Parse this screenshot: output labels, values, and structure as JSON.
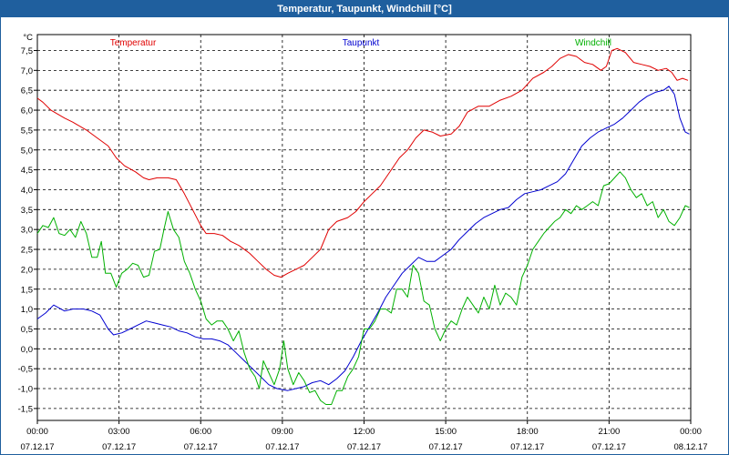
{
  "window": {
    "title": "Temperatur, Taupunkt, Windchill [°C]"
  },
  "chart_data": {
    "type": "line",
    "title": "Temperatur, Taupunkt, Windchill [°C]",
    "ylabel": "°C",
    "xlabel": "",
    "ylim": [
      -1.8,
      7.9
    ],
    "xlim": [
      0,
      24
    ],
    "grid": true,
    "legend_position": "top",
    "y_ticks": [
      -1.5,
      -1.0,
      -0.5,
      0.0,
      0.5,
      1.0,
      1.5,
      2.0,
      2.5,
      3.0,
      3.5,
      4.0,
      4.5,
      5.0,
      5.5,
      6.0,
      6.5,
      7.0,
      7.5
    ],
    "y_tick_labels": [
      "-1,5",
      "-1,0",
      "-0,5",
      "0,0",
      "0,5",
      "1,0",
      "1,5",
      "2,0",
      "2,5",
      "3,0",
      "3,5",
      "4,0",
      "4,5",
      "5,0",
      "5,5",
      "6,0",
      "6,5",
      "7,0",
      "7,5"
    ],
    "x_ticks": [
      {
        "x": 0,
        "time": "00:00",
        "date": "07.12.17"
      },
      {
        "x": 3,
        "time": "03:00",
        "date": "07.12.17"
      },
      {
        "x": 6,
        "time": "06:00",
        "date": "07.12.17"
      },
      {
        "x": 9,
        "time": "09:00",
        "date": "07.12.17"
      },
      {
        "x": 12,
        "time": "12:00",
        "date": "07.12.17"
      },
      {
        "x": 15,
        "time": "15:00",
        "date": "07.12.17"
      },
      {
        "x": 18,
        "time": "18:00",
        "date": "07.12.17"
      },
      {
        "x": 21,
        "time": "21:00",
        "date": "07.12.17"
      },
      {
        "x": 24,
        "time": "00:00",
        "date": "08.12.17"
      }
    ],
    "series": [
      {
        "name": "Temperatur",
        "color": "#e00000",
        "points": [
          [
            0,
            6.3
          ],
          [
            0.2,
            6.2
          ],
          [
            0.5,
            6.0
          ],
          [
            1.0,
            5.8
          ],
          [
            1.3,
            5.7
          ],
          [
            1.8,
            5.5
          ],
          [
            2.2,
            5.3
          ],
          [
            2.6,
            5.1
          ],
          [
            2.9,
            4.8
          ],
          [
            3.2,
            4.6
          ],
          [
            3.6,
            4.45
          ],
          [
            3.9,
            4.3
          ],
          [
            4.1,
            4.25
          ],
          [
            4.4,
            4.3
          ],
          [
            4.8,
            4.3
          ],
          [
            5.1,
            4.25
          ],
          [
            5.4,
            3.9
          ],
          [
            5.7,
            3.5
          ],
          [
            6.0,
            3.1
          ],
          [
            6.2,
            2.9
          ],
          [
            6.5,
            2.9
          ],
          [
            6.8,
            2.85
          ],
          [
            7.1,
            2.7
          ],
          [
            7.4,
            2.6
          ],
          [
            7.8,
            2.4
          ],
          [
            8.1,
            2.2
          ],
          [
            8.4,
            2.0
          ],
          [
            8.7,
            1.85
          ],
          [
            8.95,
            1.8
          ],
          [
            9.2,
            1.9
          ],
          [
            9.5,
            2.0
          ],
          [
            9.8,
            2.1
          ],
          [
            10.1,
            2.3
          ],
          [
            10.4,
            2.5
          ],
          [
            10.7,
            3.0
          ],
          [
            11.0,
            3.2
          ],
          [
            11.4,
            3.3
          ],
          [
            11.7,
            3.45
          ],
          [
            12.0,
            3.7
          ],
          [
            12.3,
            3.9
          ],
          [
            12.6,
            4.1
          ],
          [
            12.9,
            4.4
          ],
          [
            13.3,
            4.8
          ],
          [
            13.6,
            5.0
          ],
          [
            13.9,
            5.3
          ],
          [
            14.2,
            5.5
          ],
          [
            14.5,
            5.45
          ],
          [
            14.8,
            5.35
          ],
          [
            15.2,
            5.4
          ],
          [
            15.5,
            5.6
          ],
          [
            15.8,
            5.95
          ],
          [
            16.2,
            6.1
          ],
          [
            16.6,
            6.1
          ],
          [
            17.0,
            6.25
          ],
          [
            17.4,
            6.35
          ],
          [
            17.8,
            6.5
          ],
          [
            18.2,
            6.8
          ],
          [
            18.6,
            6.95
          ],
          [
            18.9,
            7.1
          ],
          [
            19.2,
            7.3
          ],
          [
            19.5,
            7.4
          ],
          [
            19.8,
            7.35
          ],
          [
            20.1,
            7.2
          ],
          [
            20.4,
            7.15
          ],
          [
            20.7,
            7.0
          ],
          [
            20.9,
            7.1
          ],
          [
            21.1,
            7.5
          ],
          [
            21.3,
            7.55
          ],
          [
            21.6,
            7.45
          ],
          [
            21.9,
            7.2
          ],
          [
            22.2,
            7.15
          ],
          [
            22.5,
            7.1
          ],
          [
            22.8,
            7.0
          ],
          [
            23.1,
            7.05
          ],
          [
            23.3,
            6.95
          ],
          [
            23.5,
            6.75
          ],
          [
            23.7,
            6.8
          ],
          [
            23.9,
            6.75
          ]
        ]
      },
      {
        "name": "Taupunkt",
        "color": "#0000d0",
        "points": [
          [
            0,
            0.75
          ],
          [
            0.3,
            0.9
          ],
          [
            0.6,
            1.1
          ],
          [
            1.0,
            0.95
          ],
          [
            1.3,
            1.0
          ],
          [
            1.7,
            1.0
          ],
          [
            2.0,
            0.95
          ],
          [
            2.3,
            0.85
          ],
          [
            2.6,
            0.5
          ],
          [
            2.8,
            0.35
          ],
          [
            3.1,
            0.4
          ],
          [
            3.4,
            0.5
          ],
          [
            3.7,
            0.6
          ],
          [
            4.0,
            0.7
          ],
          [
            4.3,
            0.65
          ],
          [
            4.6,
            0.6
          ],
          [
            4.9,
            0.55
          ],
          [
            5.2,
            0.45
          ],
          [
            5.5,
            0.4
          ],
          [
            5.8,
            0.3
          ],
          [
            6.1,
            0.25
          ],
          [
            6.4,
            0.25
          ],
          [
            6.7,
            0.2
          ],
          [
            7.0,
            0.1
          ],
          [
            7.3,
            -0.1
          ],
          [
            7.6,
            -0.3
          ],
          [
            7.9,
            -0.5
          ],
          [
            8.2,
            -0.7
          ],
          [
            8.5,
            -0.9
          ],
          [
            8.8,
            -1.0
          ],
          [
            9.2,
            -1.05
          ],
          [
            9.5,
            -1.0
          ],
          [
            9.8,
            -0.95
          ],
          [
            10.1,
            -0.85
          ],
          [
            10.4,
            -0.8
          ],
          [
            10.7,
            -0.9
          ],
          [
            11.0,
            -0.75
          ],
          [
            11.3,
            -0.55
          ],
          [
            11.6,
            -0.2
          ],
          [
            11.9,
            0.2
          ],
          [
            12.2,
            0.55
          ],
          [
            12.5,
            0.9
          ],
          [
            12.8,
            1.3
          ],
          [
            13.1,
            1.6
          ],
          [
            13.4,
            1.9
          ],
          [
            13.7,
            2.1
          ],
          [
            14.0,
            2.3
          ],
          [
            14.3,
            2.2
          ],
          [
            14.6,
            2.2
          ],
          [
            14.9,
            2.35
          ],
          [
            15.2,
            2.5
          ],
          [
            15.5,
            2.75
          ],
          [
            15.8,
            2.95
          ],
          [
            16.1,
            3.15
          ],
          [
            16.4,
            3.3
          ],
          [
            16.7,
            3.4
          ],
          [
            17.0,
            3.5
          ],
          [
            17.3,
            3.55
          ],
          [
            17.6,
            3.75
          ],
          [
            17.9,
            3.9
          ],
          [
            18.2,
            3.95
          ],
          [
            18.5,
            4.0
          ],
          [
            18.8,
            4.1
          ],
          [
            19.1,
            4.2
          ],
          [
            19.4,
            4.4
          ],
          [
            19.7,
            4.75
          ],
          [
            20.0,
            5.1
          ],
          [
            20.3,
            5.3
          ],
          [
            20.6,
            5.45
          ],
          [
            20.9,
            5.55
          ],
          [
            21.2,
            5.65
          ],
          [
            21.5,
            5.8
          ],
          [
            21.8,
            6.0
          ],
          [
            22.1,
            6.2
          ],
          [
            22.4,
            6.35
          ],
          [
            22.7,
            6.45
          ],
          [
            23.0,
            6.5
          ],
          [
            23.2,
            6.6
          ],
          [
            23.4,
            6.4
          ],
          [
            23.6,
            5.8
          ],
          [
            23.8,
            5.45
          ],
          [
            23.95,
            5.4
          ]
        ]
      },
      {
        "name": "Windchill",
        "color": "#00b000",
        "points": [
          [
            0,
            2.9
          ],
          [
            0.2,
            3.1
          ],
          [
            0.4,
            3.05
          ],
          [
            0.6,
            3.3
          ],
          [
            0.8,
            2.9
          ],
          [
            1.0,
            2.85
          ],
          [
            1.2,
            3.0
          ],
          [
            1.4,
            2.8
          ],
          [
            1.6,
            3.2
          ],
          [
            1.8,
            2.9
          ],
          [
            2.0,
            2.3
          ],
          [
            2.2,
            2.3
          ],
          [
            2.35,
            2.7
          ],
          [
            2.5,
            1.9
          ],
          [
            2.7,
            1.9
          ],
          [
            2.9,
            1.55
          ],
          [
            3.1,
            1.9
          ],
          [
            3.3,
            2.0
          ],
          [
            3.5,
            2.15
          ],
          [
            3.7,
            2.1
          ],
          [
            3.9,
            1.8
          ],
          [
            4.1,
            1.85
          ],
          [
            4.3,
            2.45
          ],
          [
            4.5,
            2.5
          ],
          [
            4.65,
            3.0
          ],
          [
            4.8,
            3.45
          ],
          [
            5.0,
            3.0
          ],
          [
            5.2,
            2.8
          ],
          [
            5.4,
            2.2
          ],
          [
            5.6,
            1.9
          ],
          [
            5.8,
            1.5
          ],
          [
            6.0,
            1.2
          ],
          [
            6.2,
            0.75
          ],
          [
            6.4,
            0.6
          ],
          [
            6.6,
            0.7
          ],
          [
            6.8,
            0.7
          ],
          [
            7.0,
            0.5
          ],
          [
            7.2,
            0.2
          ],
          [
            7.4,
            0.45
          ],
          [
            7.6,
            -0.1
          ],
          [
            7.8,
            -0.5
          ],
          [
            8.0,
            -0.7
          ],
          [
            8.15,
            -1.0
          ],
          [
            8.3,
            -0.3
          ],
          [
            8.5,
            -0.6
          ],
          [
            8.7,
            -0.9
          ],
          [
            8.9,
            -0.5
          ],
          [
            9.05,
            0.2
          ],
          [
            9.2,
            -0.5
          ],
          [
            9.4,
            -0.9
          ],
          [
            9.6,
            -0.6
          ],
          [
            9.8,
            -0.8
          ],
          [
            10.0,
            -1.1
          ],
          [
            10.2,
            -1.05
          ],
          [
            10.4,
            -1.3
          ],
          [
            10.6,
            -1.4
          ],
          [
            10.8,
            -1.4
          ],
          [
            11.0,
            -1.05
          ],
          [
            11.2,
            -1.05
          ],
          [
            11.4,
            -0.7
          ],
          [
            11.6,
            -0.5
          ],
          [
            11.8,
            -0.2
          ],
          [
            12.0,
            0.5
          ],
          [
            12.2,
            0.5
          ],
          [
            12.4,
            0.7
          ],
          [
            12.6,
            1.0
          ],
          [
            12.8,
            1.0
          ],
          [
            13.0,
            0.9
          ],
          [
            13.2,
            1.5
          ],
          [
            13.4,
            1.5
          ],
          [
            13.6,
            1.3
          ],
          [
            13.8,
            2.1
          ],
          [
            14.0,
            1.9
          ],
          [
            14.2,
            1.2
          ],
          [
            14.4,
            1.1
          ],
          [
            14.6,
            0.5
          ],
          [
            14.8,
            0.2
          ],
          [
            15.0,
            0.5
          ],
          [
            15.2,
            0.7
          ],
          [
            15.4,
            0.6
          ],
          [
            15.6,
            1.0
          ],
          [
            15.8,
            1.3
          ],
          [
            16.0,
            1.1
          ],
          [
            16.2,
            0.9
          ],
          [
            16.4,
            1.3
          ],
          [
            16.6,
            1.0
          ],
          [
            16.8,
            1.6
          ],
          [
            17.0,
            1.1
          ],
          [
            17.2,
            1.4
          ],
          [
            17.4,
            1.3
          ],
          [
            17.6,
            1.1
          ],
          [
            17.8,
            1.8
          ],
          [
            18.0,
            2.1
          ],
          [
            18.2,
            2.5
          ],
          [
            18.4,
            2.7
          ],
          [
            18.6,
            2.9
          ],
          [
            18.8,
            3.05
          ],
          [
            19.0,
            3.2
          ],
          [
            19.2,
            3.3
          ],
          [
            19.4,
            3.5
          ],
          [
            19.6,
            3.4
          ],
          [
            19.8,
            3.6
          ],
          [
            20.0,
            3.5
          ],
          [
            20.2,
            3.6
          ],
          [
            20.4,
            3.7
          ],
          [
            20.6,
            3.6
          ],
          [
            20.8,
            4.1
          ],
          [
            21.0,
            4.15
          ],
          [
            21.2,
            4.3
          ],
          [
            21.4,
            4.45
          ],
          [
            21.6,
            4.3
          ],
          [
            21.8,
            4.0
          ],
          [
            22.0,
            3.8
          ],
          [
            22.2,
            3.9
          ],
          [
            22.4,
            3.6
          ],
          [
            22.6,
            3.7
          ],
          [
            22.8,
            3.3
          ],
          [
            23.0,
            3.5
          ],
          [
            23.2,
            3.2
          ],
          [
            23.4,
            3.1
          ],
          [
            23.6,
            3.3
          ],
          [
            23.8,
            3.6
          ],
          [
            23.95,
            3.55
          ]
        ]
      }
    ]
  }
}
